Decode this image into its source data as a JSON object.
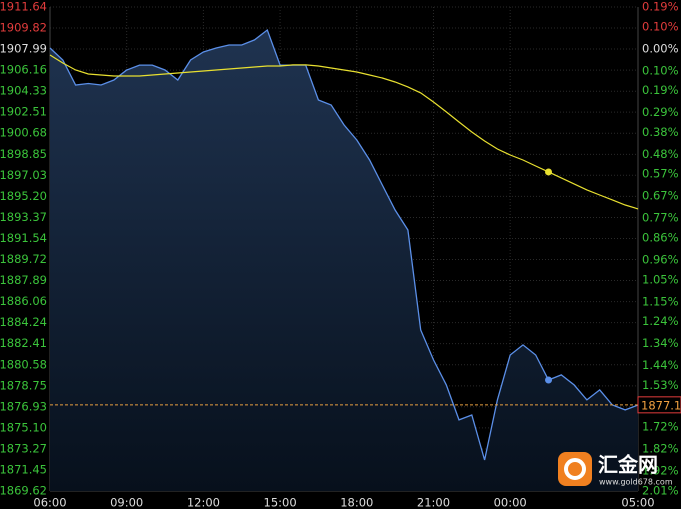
{
  "chart_data": {
    "type": "line",
    "x": [
      0,
      0.5,
      1,
      1.5,
      2,
      2.5,
      3,
      3.5,
      4,
      4.5,
      5,
      5.5,
      6,
      6.5,
      7,
      7.5,
      8,
      8.5,
      9,
      9.5,
      10,
      10.5,
      11,
      11.5,
      12,
      12.5,
      13,
      13.5,
      14,
      14.5,
      15,
      15.5,
      16,
      16.5,
      17,
      17.5,
      18,
      18.5,
      19,
      19.5,
      20,
      20.5,
      21,
      21.5,
      22,
      22.5,
      23
    ],
    "series": [
      {
        "color": "#5b8fe8",
        "values": [
          1908.08,
          1907.04,
          1904.87,
          1905.0,
          1904.87,
          1905.3,
          1906.17,
          1906.6,
          1906.6,
          1906.17,
          1905.3,
          1907.04,
          1907.73,
          1908.08,
          1908.34,
          1908.34,
          1908.78,
          1909.64,
          1906.6,
          1906.6,
          1906.6,
          1903.57,
          1903.13,
          1901.4,
          1900.09,
          1898.36,
          1896.19,
          1894.02,
          1892.28,
          1883.6,
          1881.0,
          1878.83,
          1875.79,
          1876.22,
          1872.31,
          1877.53,
          1881.43,
          1882.3,
          1881.43,
          1879.26,
          1879.7,
          1878.83,
          1877.53,
          1878.4,
          1877.09,
          1876.66,
          1877.09
        ]
      },
      {
        "color": "#e8e030",
        "values": [
          1907.47,
          1906.78,
          1906.17,
          1905.82,
          1905.74,
          1905.65,
          1905.65,
          1905.65,
          1905.74,
          1905.82,
          1905.91,
          1906.0,
          1906.08,
          1906.17,
          1906.26,
          1906.34,
          1906.43,
          1906.52,
          1906.52,
          1906.61,
          1906.61,
          1906.52,
          1906.34,
          1906.17,
          1906.0,
          1905.74,
          1905.48,
          1905.13,
          1904.7,
          1904.18,
          1903.39,
          1902.53,
          1901.66,
          1900.79,
          1900.01,
          1899.31,
          1898.79,
          1898.36,
          1897.84,
          1897.32,
          1896.8,
          1896.28,
          1895.76,
          1895.32,
          1894.89,
          1894.45,
          1894.11
        ]
      }
    ],
    "current_price": 1877.1,
    "xlim": [
      0,
      23
    ],
    "xticks": [
      {
        "value": 0,
        "label": "06:00"
      },
      {
        "value": 3,
        "label": "09:00"
      },
      {
        "value": 6,
        "label": "12:00"
      },
      {
        "value": 9,
        "label": "15:00"
      },
      {
        "value": 12,
        "label": "18:00"
      },
      {
        "value": 15,
        "label": "21:00"
      },
      {
        "value": 18,
        "label": "00:00"
      },
      {
        "value": 23,
        "label": "05:00"
      }
    ],
    "ylim": [
      1869.62,
      1911.64
    ],
    "yticks": [
      1911.64,
      1909.82,
      1907.99,
      1906.16,
      1904.33,
      1902.51,
      1900.68,
      1898.85,
      1897.03,
      {
        "value": 1895.2,
        "label": "1895.20"
      },
      1893.37,
      1891.54,
      1889.72,
      1887.89,
      1886.06,
      1884.24,
      1882.41,
      1880.58,
      1878.75,
      1876.93,
      {
        "value": 1875.1,
        "label": "1875.10"
      },
      1873.27,
      1871.45,
      1869.62
    ],
    "y2lim": [
      -2.01,
      0.19
    ],
    "y2ticks": [
      {
        "value": 0.19,
        "label": "0.19%"
      },
      {
        "value": 0.1,
        "label": "0.10%"
      },
      {
        "value": 0,
        "label": "0.00%"
      },
      {
        "value": -0.1,
        "label": "0.10%"
      },
      {
        "value": -0.19,
        "label": "0.19%"
      },
      {
        "value": -0.29,
        "label": "0.29%"
      },
      {
        "value": -0.38,
        "label": "0.38%"
      },
      {
        "value": -0.48,
        "label": "0.48%"
      },
      {
        "value": -0.57,
        "label": "0.57%"
      },
      {
        "value": -0.67,
        "label": "0.67%"
      },
      {
        "value": -0.77,
        "label": "0.77%"
      },
      {
        "value": -0.86,
        "label": "0.86%"
      },
      {
        "value": -0.96,
        "label": "0.96%"
      },
      {
        "value": -1.05,
        "label": "1.05%"
      },
      {
        "value": -1.15,
        "label": "1.15%"
      },
      {
        "value": -1.24,
        "label": "1.24%"
      },
      {
        "value": -1.34,
        "label": "1.34%"
      },
      {
        "value": -1.44,
        "label": "1.44%"
      },
      {
        "value": -1.53,
        "label": "1.53%"
      },
      {
        "value": -1.63,
        "label": "1.63%"
      },
      {
        "value": -1.72,
        "label": "1.72%"
      },
      {
        "value": -1.82,
        "label": "1.82%"
      },
      {
        "value": -1.92,
        "label": "1.92%"
      },
      {
        "value": -2.01,
        "label": "2.01%"
      }
    ],
    "grid": true
  },
  "watermark": {
    "name": "汇金网",
    "url": "www.gold678.com"
  }
}
